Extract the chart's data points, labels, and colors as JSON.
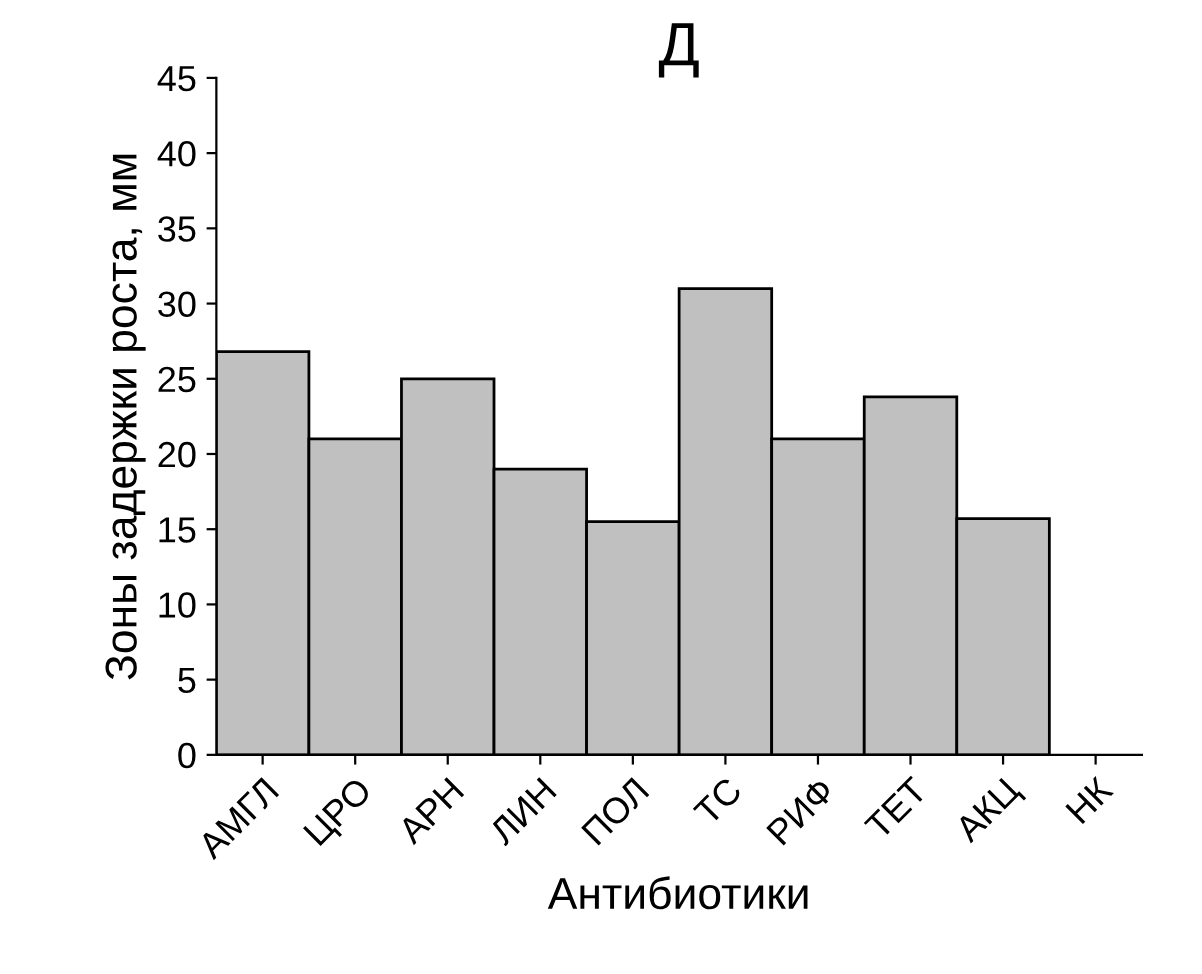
{
  "chart_data": {
    "type": "bar",
    "title": "Д",
    "xlabel": "Антибиотики",
    "ylabel": "Зоны задержки роста, мм",
    "categories": [
      "АМГЛ",
      "ЦРО",
      "АРН",
      "ЛИН",
      "ПОЛ",
      "ТС",
      "РИФ",
      "ТЕТ",
      "АКЦ",
      "НК"
    ],
    "values": [
      26.8,
      21,
      25,
      19,
      15.5,
      31,
      21,
      23.8,
      15.7,
      0
    ],
    "color": "#c0c0c0",
    "ylim": [
      0,
      45
    ],
    "yticks": [
      0,
      5,
      10,
      15,
      20,
      25,
      30,
      35,
      40,
      45
    ],
    "grid": false,
    "legend": false
  }
}
